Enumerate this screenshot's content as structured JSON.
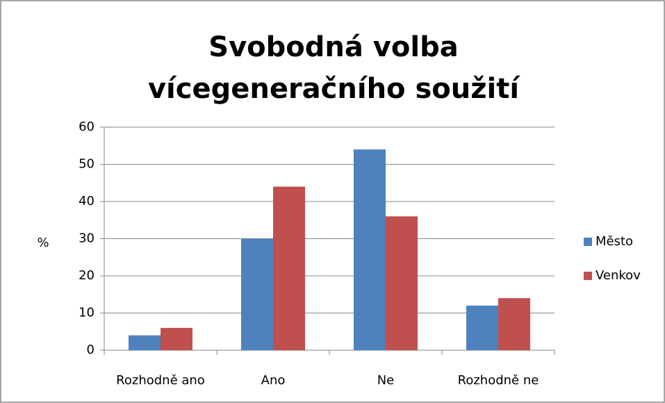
{
  "chart_data": {
    "type": "bar",
    "title": "Svobodná volba vícegeneračního soužití",
    "y_label": "%",
    "categories": [
      "Rozhodně ano",
      "Ano",
      "Ne",
      "Rozhodně ne"
    ],
    "series": [
      {
        "name": "Město",
        "color": "#4f81bd",
        "values": [
          4,
          30,
          54,
          12
        ]
      },
      {
        "name": "Venkov",
        "color": "#c0504d",
        "values": [
          6,
          44,
          36,
          14
        ]
      }
    ],
    "ylim": [
      0,
      60
    ],
    "yticks": [
      0,
      10,
      20,
      30,
      40,
      50,
      60
    ],
    "grid": true,
    "legend": "right"
  }
}
